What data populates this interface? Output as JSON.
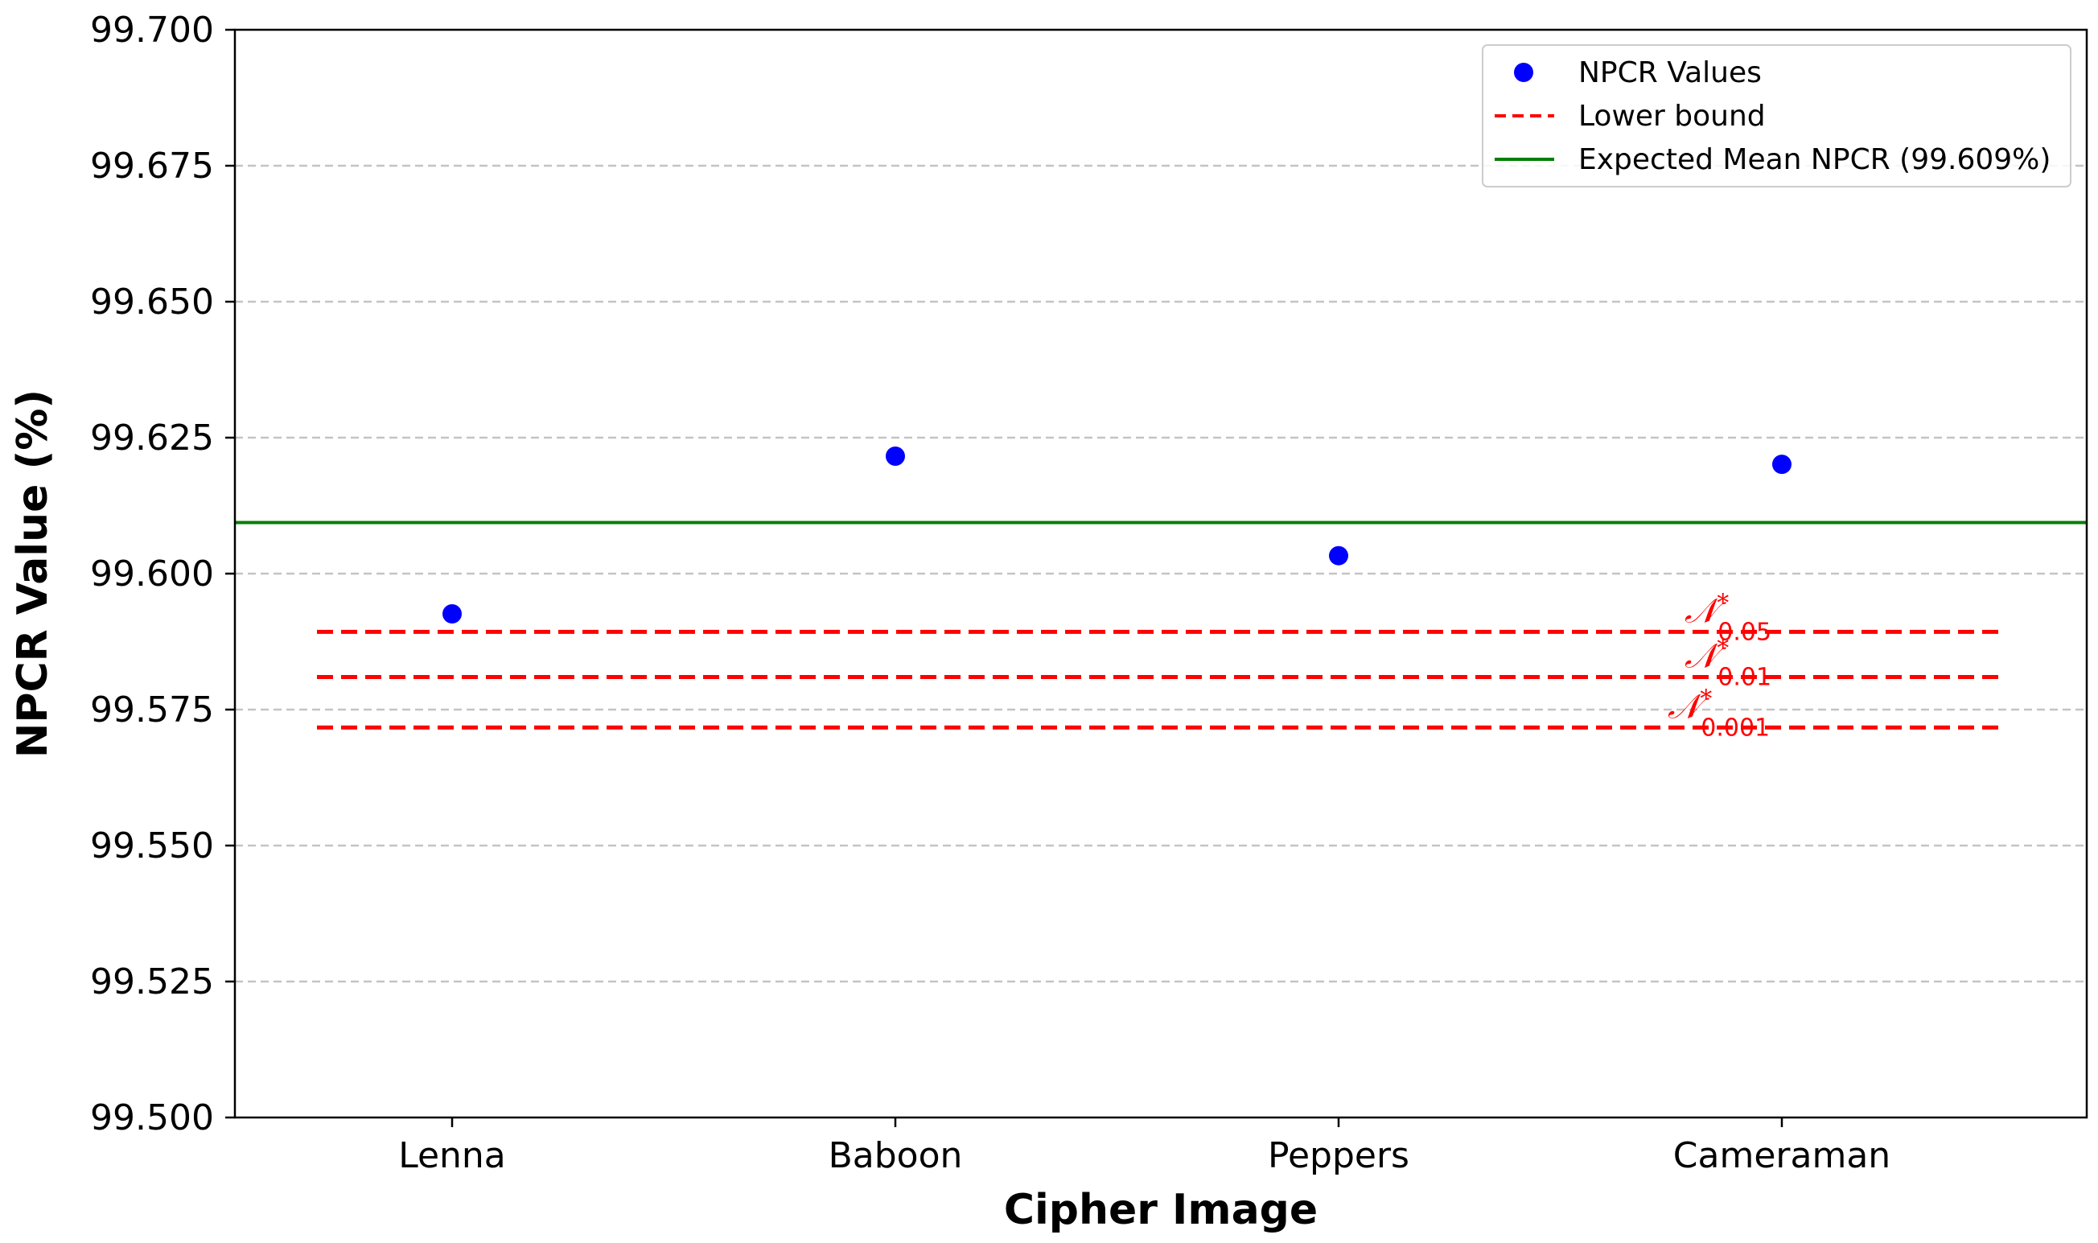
{
  "chart_data": {
    "type": "scatter",
    "title": "",
    "xlabel": "Cipher Image",
    "ylabel": "NPCR Value (%)",
    "categories": [
      "Lenna",
      "Baboon",
      "Peppers",
      "Cameraman"
    ],
    "ylim": [
      99.5,
      99.7
    ],
    "yticks": [
      99.5,
      99.525,
      99.55,
      99.575,
      99.6,
      99.625,
      99.65,
      99.675,
      99.7
    ],
    "ytick_labels": [
      "99.500",
      "99.525",
      "99.550",
      "99.575",
      "99.600",
      "99.625",
      "99.650",
      "99.675",
      "99.700"
    ],
    "grid": "horizontal dashed",
    "legend_position": "top-right",
    "series": [
      {
        "name": "NPCR Values",
        "kind": "scatter",
        "color": "#0000ff",
        "values": [
          99.5926,
          99.6216,
          99.6033,
          99.6201
        ]
      }
    ],
    "lower_bounds": {
      "name": "Lower bound",
      "color": "#ff0000",
      "style": "dashed",
      "lines": [
        {
          "symbol": "𝒩",
          "superscript": "*",
          "subscript": "0.05",
          "value": 99.5893
        },
        {
          "symbol": "𝒩",
          "superscript": "*",
          "subscript": "0.01",
          "value": 99.581
        },
        {
          "symbol": "𝒩",
          "superscript": "*",
          "subscript": "0.001",
          "value": 99.5717
        }
      ]
    },
    "expected_mean": {
      "name": "Expected Mean NPCR (99.609%)",
      "value": 99.6094,
      "color": "#008000"
    }
  }
}
